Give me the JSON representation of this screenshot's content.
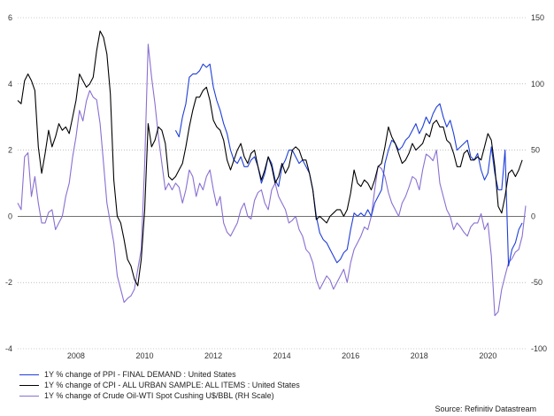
{
  "chart_data": {
    "type": "line",
    "title": "",
    "xlabel": "",
    "ylabel": "",
    "x_ticks": [
      "2008",
      "2010",
      "2012",
      "2014",
      "2016",
      "2018",
      "2020"
    ],
    "x_range": [
      2006.3,
      2021.1
    ],
    "left_axis": {
      "ylim": [
        -4,
        6
      ],
      "ticks": [
        "-4",
        "-2",
        "0",
        "2",
        "4",
        "6"
      ]
    },
    "right_axis": {
      "ylim": [
        -100,
        150
      ],
      "ticks": [
        "-100",
        "-50",
        "0",
        "50",
        "100",
        "150"
      ]
    },
    "grid": "horizontal dotted",
    "series": [
      {
        "name": "1Y % change of PPI - FINAL DEMAND : United States",
        "axis": "left",
        "color": "#1f3fd8",
        "x": [
          2010.9,
          2011.0,
          2011.1,
          2011.2,
          2011.3,
          2011.4,
          2011.5,
          2011.6,
          2011.7,
          2011.8,
          2011.9,
          2012.0,
          2012.1,
          2012.2,
          2012.3,
          2012.4,
          2012.5,
          2012.6,
          2012.7,
          2012.8,
          2012.9,
          2013.0,
          2013.1,
          2013.2,
          2013.3,
          2013.4,
          2013.5,
          2013.6,
          2013.7,
          2013.8,
          2013.9,
          2014.0,
          2014.1,
          2014.2,
          2014.3,
          2014.4,
          2014.5,
          2014.6,
          2014.7,
          2014.8,
          2014.9,
          2015.0,
          2015.1,
          2015.2,
          2015.3,
          2015.4,
          2015.5,
          2015.6,
          2015.7,
          2015.8,
          2015.9,
          2016.0,
          2016.1,
          2016.2,
          2016.3,
          2016.4,
          2016.5,
          2016.6,
          2016.7,
          2016.8,
          2016.9,
          2017.0,
          2017.1,
          2017.2,
          2017.3,
          2017.4,
          2017.5,
          2017.6,
          2017.7,
          2017.8,
          2017.9,
          2018.0,
          2018.1,
          2018.2,
          2018.3,
          2018.4,
          2018.5,
          2018.6,
          2018.7,
          2018.8,
          2018.9,
          2019.0,
          2019.1,
          2019.2,
          2019.3,
          2019.4,
          2019.5,
          2019.6,
          2019.7,
          2019.8,
          2019.9,
          2020.0,
          2020.1,
          2020.2,
          2020.3,
          2020.4,
          2020.5,
          2020.6,
          2020.7,
          2020.8,
          2020.9,
          2021.0
        ],
        "values": [
          2.6,
          2.4,
          3.0,
          3.4,
          4.2,
          4.3,
          4.3,
          4.4,
          4.6,
          4.5,
          4.6,
          3.9,
          3.5,
          3.2,
          2.8,
          2.5,
          2.0,
          1.7,
          1.6,
          1.8,
          1.5,
          1.5,
          1.7,
          1.8,
          1.5,
          1.0,
          1.3,
          1.8,
          1.6,
          1.1,
          0.9,
          1.5,
          1.7,
          2.0,
          2.0,
          1.8,
          1.6,
          1.7,
          1.5,
          1.3,
          0.8,
          0.0,
          -0.5,
          -0.7,
          -0.8,
          -1.0,
          -1.2,
          -1.4,
          -1.3,
          -1.1,
          -1.0,
          -0.4,
          0.1,
          0.0,
          0.1,
          0.0,
          0.2,
          0.0,
          0.4,
          0.6,
          0.8,
          1.6,
          2.0,
          2.3,
          2.2,
          2.0,
          2.1,
          2.3,
          2.4,
          2.6,
          2.8,
          2.5,
          2.7,
          3.0,
          2.8,
          3.1,
          3.3,
          3.4,
          3.0,
          2.7,
          2.9,
          2.5,
          2.0,
          2.1,
          2.2,
          2.3,
          1.8,
          1.7,
          1.9,
          1.4,
          1.1,
          1.3,
          2.1,
          1.3,
          0.8,
          0.8,
          2.0,
          -1.5,
          -1.0,
          -0.8,
          -0.4,
          -0.2
        ]
      },
      {
        "name": "1Y % change of CPI - ALL URBAN SAMPLE: ALL ITEMS : United States",
        "axis": "left",
        "color": "#000000",
        "x": [
          2006.3,
          2006.4,
          2006.5,
          2006.6,
          2006.7,
          2006.8,
          2006.9,
          2007.0,
          2007.1,
          2007.2,
          2007.3,
          2007.4,
          2007.5,
          2007.6,
          2007.7,
          2007.8,
          2007.9,
          2008.0,
          2008.1,
          2008.2,
          2008.3,
          2008.4,
          2008.5,
          2008.6,
          2008.7,
          2008.8,
          2008.9,
          2009.0,
          2009.1,
          2009.2,
          2009.3,
          2009.4,
          2009.5,
          2009.6,
          2009.7,
          2009.8,
          2009.9,
          2010.0,
          2010.1,
          2010.2,
          2010.3,
          2010.4,
          2010.5,
          2010.6,
          2010.7,
          2010.8,
          2010.9,
          2011.0,
          2011.1,
          2011.2,
          2011.3,
          2011.4,
          2011.5,
          2011.6,
          2011.7,
          2011.8,
          2011.9,
          2012.0,
          2012.1,
          2012.2,
          2012.3,
          2012.4,
          2012.5,
          2012.6,
          2012.7,
          2012.8,
          2012.9,
          2013.0,
          2013.1,
          2013.2,
          2013.3,
          2013.4,
          2013.5,
          2013.6,
          2013.7,
          2013.8,
          2013.9,
          2014.0,
          2014.1,
          2014.2,
          2014.3,
          2014.4,
          2014.5,
          2014.6,
          2014.7,
          2014.8,
          2014.9,
          2015.0,
          2015.1,
          2015.2,
          2015.3,
          2015.4,
          2015.5,
          2015.6,
          2015.7,
          2015.8,
          2015.9,
          2016.0,
          2016.1,
          2016.2,
          2016.3,
          2016.4,
          2016.5,
          2016.6,
          2016.7,
          2016.8,
          2016.9,
          2017.0,
          2017.1,
          2017.2,
          2017.3,
          2017.4,
          2017.5,
          2017.6,
          2017.7,
          2017.8,
          2017.9,
          2018.0,
          2018.1,
          2018.2,
          2018.3,
          2018.4,
          2018.5,
          2018.6,
          2018.7,
          2018.8,
          2018.9,
          2019.0,
          2019.1,
          2019.2,
          2019.3,
          2019.4,
          2019.5,
          2019.6,
          2019.7,
          2019.8,
          2019.9,
          2020.0,
          2020.1,
          2020.2,
          2020.3,
          2020.4,
          2020.5,
          2020.6,
          2020.7,
          2020.8,
          2020.9,
          2021.0
        ],
        "values": [
          3.5,
          3.4,
          4.1,
          4.3,
          4.1,
          3.8,
          2.1,
          1.3,
          1.9,
          2.6,
          2.1,
          2.4,
          2.8,
          2.6,
          2.7,
          2.5,
          3.0,
          3.5,
          4.3,
          4.1,
          3.9,
          4.0,
          4.2,
          5.0,
          5.6,
          5.4,
          4.9,
          3.7,
          1.1,
          0.0,
          -0.2,
          -0.7,
          -1.3,
          -1.5,
          -1.9,
          -2.1,
          -1.3,
          0.2,
          2.8,
          2.1,
          2.3,
          2.7,
          2.6,
          2.2,
          1.2,
          1.1,
          1.2,
          1.4,
          1.6,
          2.1,
          2.7,
          3.2,
          3.6,
          3.6,
          3.8,
          3.9,
          3.5,
          2.9,
          2.7,
          2.6,
          2.3,
          1.7,
          1.4,
          1.7,
          2.0,
          2.2,
          1.8,
          1.6,
          1.9,
          2.0,
          1.5,
          1.1,
          1.4,
          1.8,
          1.5,
          1.0,
          1.2,
          1.6,
          1.3,
          1.5,
          2.0,
          2.1,
          2.0,
          1.7,
          1.7,
          1.3,
          0.8,
          -0.1,
          0.0,
          -0.1,
          -0.2,
          0.0,
          0.1,
          0.2,
          0.2,
          0.0,
          0.2,
          0.7,
          1.4,
          1.0,
          0.9,
          1.1,
          1.0,
          0.8,
          1.1,
          1.5,
          1.6,
          2.1,
          2.7,
          2.4,
          2.2,
          1.9,
          1.6,
          1.7,
          1.9,
          2.2,
          2.0,
          2.1,
          2.2,
          2.5,
          2.4,
          2.8,
          2.9,
          2.7,
          2.7,
          2.3,
          2.2,
          1.9,
          1.5,
          1.5,
          1.9,
          2.0,
          1.7,
          1.7,
          1.8,
          1.7,
          2.1,
          2.5,
          2.3,
          1.5,
          0.3,
          0.1,
          0.6,
          1.3,
          1.4,
          1.2,
          1.4,
          1.7
        ]
      },
      {
        "name": "1Y % change of Crude Oil-WTI Spot Cushing U$/BBL (RH Scale)",
        "axis": "right",
        "color": "#8a6fd1",
        "x": [
          2006.3,
          2006.4,
          2006.5,
          2006.6,
          2006.7,
          2006.8,
          2006.9,
          2007.0,
          2007.1,
          2007.2,
          2007.3,
          2007.4,
          2007.5,
          2007.6,
          2007.7,
          2007.8,
          2007.9,
          2008.0,
          2008.1,
          2008.2,
          2008.3,
          2008.4,
          2008.5,
          2008.6,
          2008.7,
          2008.8,
          2008.9,
          2009.0,
          2009.1,
          2009.2,
          2009.3,
          2009.4,
          2009.5,
          2009.6,
          2009.7,
          2009.8,
          2009.9,
          2010.0,
          2010.1,
          2010.2,
          2010.3,
          2010.4,
          2010.5,
          2010.6,
          2010.7,
          2010.8,
          2010.9,
          2011.0,
          2011.1,
          2011.2,
          2011.3,
          2011.4,
          2011.5,
          2011.6,
          2011.7,
          2011.8,
          2011.9,
          2012.0,
          2012.1,
          2012.2,
          2012.3,
          2012.4,
          2012.5,
          2012.6,
          2012.7,
          2012.8,
          2012.9,
          2013.0,
          2013.1,
          2013.2,
          2013.3,
          2013.4,
          2013.5,
          2013.6,
          2013.7,
          2013.8,
          2013.9,
          2014.0,
          2014.1,
          2014.2,
          2014.3,
          2014.4,
          2014.5,
          2014.6,
          2014.7,
          2014.8,
          2014.9,
          2015.0,
          2015.1,
          2015.2,
          2015.3,
          2015.4,
          2015.5,
          2015.6,
          2015.7,
          2015.8,
          2015.9,
          2016.0,
          2016.1,
          2016.2,
          2016.3,
          2016.4,
          2016.5,
          2016.6,
          2016.7,
          2016.8,
          2016.9,
          2017.0,
          2017.1,
          2017.2,
          2017.3,
          2017.4,
          2017.5,
          2017.6,
          2017.7,
          2017.8,
          2017.9,
          2018.0,
          2018.1,
          2018.2,
          2018.3,
          2018.4,
          2018.5,
          2018.6,
          2018.7,
          2018.8,
          2018.9,
          2019.0,
          2019.1,
          2019.2,
          2019.3,
          2019.4,
          2019.5,
          2019.6,
          2019.7,
          2019.8,
          2019.9,
          2020.0,
          2020.1,
          2020.2,
          2020.3,
          2020.4,
          2020.5,
          2020.6,
          2020.7,
          2020.8,
          2020.9,
          2021.0,
          2021.1
        ],
        "values": [
          10,
          5,
          45,
          48,
          15,
          30,
          10,
          -5,
          -5,
          3,
          5,
          -10,
          -5,
          0,
          15,
          25,
          45,
          60,
          80,
          72,
          87,
          95,
          90,
          88,
          70,
          40,
          10,
          -5,
          -20,
          -45,
          -55,
          -65,
          -62,
          -60,
          -55,
          -40,
          -25,
          40,
          130,
          105,
          85,
          60,
          40,
          20,
          25,
          20,
          25,
          22,
          10,
          20,
          35,
          30,
          15,
          25,
          20,
          30,
          35,
          20,
          8,
          15,
          -5,
          -12,
          -15,
          -10,
          -5,
          5,
          10,
          0,
          -2,
          12,
          18,
          20,
          10,
          5,
          20,
          25,
          15,
          10,
          5,
          -5,
          -3,
          0,
          -10,
          -15,
          -25,
          -28,
          -35,
          -48,
          -55,
          -50,
          -45,
          -48,
          -55,
          -50,
          -45,
          -40,
          -50,
          -35,
          -25,
          -20,
          -15,
          -8,
          -10,
          0,
          20,
          38,
          36,
          30,
          18,
          10,
          5,
          0,
          10,
          15,
          22,
          30,
          28,
          20,
          35,
          47,
          45,
          42,
          50,
          25,
          15,
          5,
          0,
          -10,
          -5,
          -8,
          -12,
          -15,
          -8,
          -5,
          -5,
          2,
          -10,
          -5,
          -30,
          -75,
          -72,
          -55,
          -45,
          -35,
          -32,
          -27,
          -25,
          -15,
          8
        ]
      }
    ],
    "legend_position": "bottom-left"
  },
  "legend": {
    "items": [
      {
        "label": "1Y % change of PPI - FINAL DEMAND : United States",
        "color": "#1f3fd8"
      },
      {
        "label": "1Y % change of CPI - ALL URBAN SAMPLE: ALL ITEMS : United States",
        "color": "#000000"
      },
      {
        "label": "1Y % change of Crude Oil-WTI Spot Cushing U$/BBL (RH Scale)",
        "color": "#8a6fd1"
      }
    ]
  },
  "source": "Source: Refinitiv Datastream"
}
